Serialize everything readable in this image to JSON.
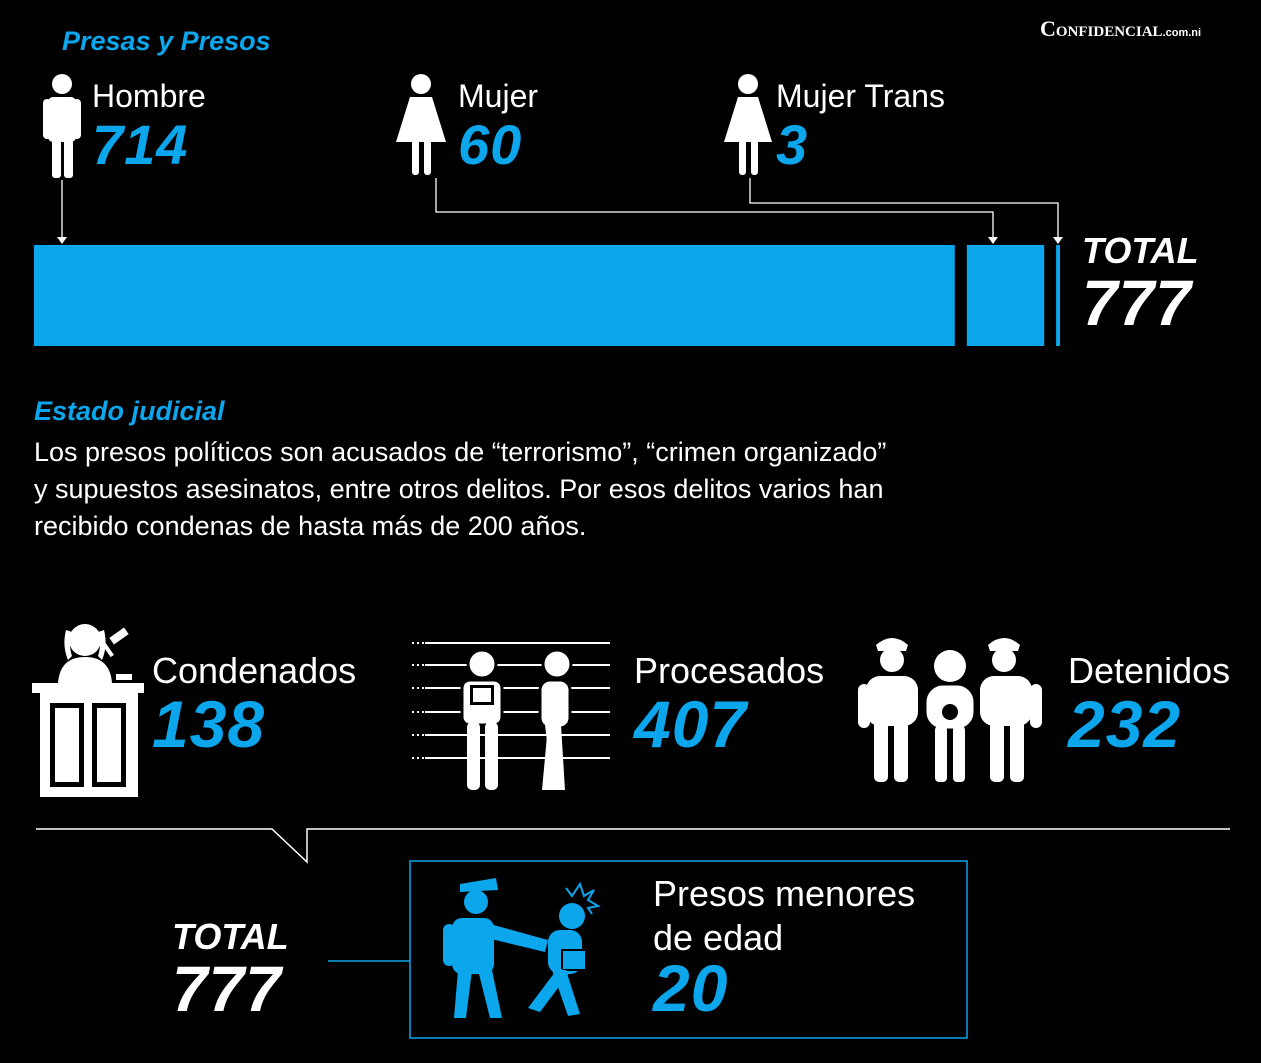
{
  "brand": {
    "name": "Confidencial",
    "suffix": ".com.ni"
  },
  "section1": {
    "title": "Presas y Presos"
  },
  "chart_data": {
    "type": "bar",
    "orientation": "horizontal-stacked",
    "categories": [
      "Hombre",
      "Mujer",
      "Mujer Trans"
    ],
    "values": [
      714,
      60,
      3
    ],
    "total_label": "TOTAL",
    "total": 777
  },
  "section2": {
    "title": "Estado judicial",
    "paragraph": [
      "Los presos políticos son acusados de “terrorismo”, “crimen organizado”",
      "y supuestos asesinatos, entre otros delitos. Por esos delitos varios han",
      "recibido condenas de hasta más de 200 años."
    ]
  },
  "status": [
    {
      "label": "Condenados",
      "value": "138",
      "icon": "judge-icon"
    },
    {
      "label": "Procesados",
      "value": "407",
      "icon": "lineup-icon"
    },
    {
      "label": "Detenidos",
      "value": "232",
      "icon": "arrest-icon"
    }
  ],
  "status_total": {
    "label": "TOTAL",
    "value": "777"
  },
  "minors": {
    "label_line1": "Presos menores",
    "label_line2": "de edad",
    "value": "20",
    "icon": "police-minor-icon"
  },
  "colors": {
    "accent": "#0ba6ec",
    "background": "#000000",
    "text": "#ffffff"
  }
}
